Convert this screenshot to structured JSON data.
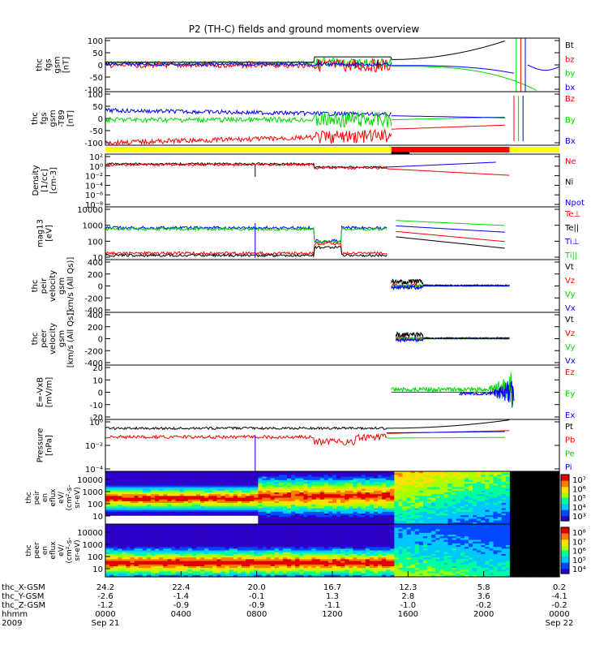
{
  "title": "P2 (TH-C) fields and ground moments overview",
  "colors": {
    "black": "#000000",
    "red": "#ff0000",
    "green": "#00d800",
    "blue": "#0000ff",
    "yellow": "#ffff00"
  },
  "chart_data": [
    {
      "type": "line",
      "id": "p1",
      "ylabel": [
        "thc",
        "fgs",
        "gsm",
        "[nT]"
      ],
      "yticks": [
        "100",
        "50",
        "0",
        "-50",
        "-100"
      ],
      "ylim": [
        -100,
        100
      ],
      "series": [
        {
          "name": "Bt",
          "color": "#000000"
        },
        {
          "name": "bz",
          "color": "#ff0000"
        },
        {
          "name": "by",
          "color": "#00d800"
        },
        {
          "name": "bx",
          "color": "#0000ff"
        }
      ]
    },
    {
      "type": "line",
      "id": "p2",
      "ylabel": [
        "thc",
        "fgs",
        "gsm",
        "-T89",
        "[nT]"
      ],
      "yticks": [
        "100",
        "50",
        "0",
        "-50",
        "-100"
      ],
      "ylim": [
        -100,
        100
      ],
      "series": [
        {
          "name": "Bz",
          "color": "#ff0000"
        },
        {
          "name": "By",
          "color": "#00d800"
        },
        {
          "name": "Bx",
          "color": "#0000ff"
        }
      ]
    },
    {
      "type": "line",
      "id": "p3",
      "ylabel": [
        "Density",
        "[1/cc]",
        "[cm-3]"
      ],
      "yticks": [
        "10²",
        "10⁰",
        "10⁻²",
        "10⁻⁴",
        "10⁻⁶",
        "10⁻⁸"
      ],
      "scale": "log",
      "series": [
        {
          "name": "Ne",
          "color": "#ff0000"
        },
        {
          "name": "Ni",
          "color": "#000000"
        },
        {
          "name": "Npot",
          "color": "#0000ff"
        }
      ]
    },
    {
      "type": "line",
      "id": "p4",
      "ylabel": [
        "mag13",
        "[eV]"
      ],
      "yticks": [
        "10000",
        "1000",
        "100",
        "10"
      ],
      "scale": "log",
      "series": [
        {
          "name": "Te⊥",
          "color": "#ff0000"
        },
        {
          "name": "Te||",
          "color": "#000000"
        },
        {
          "name": "Ti⊥",
          "color": "#0000ff"
        },
        {
          "name": "Ti||",
          "color": "#00d800"
        }
      ]
    },
    {
      "type": "line",
      "id": "p5",
      "ylabel": [
        "thc",
        "peir",
        "velocity",
        "gsm",
        "[km/s (All Qs)]"
      ],
      "yticks": [
        "400",
        "200",
        "0",
        "-200",
        "-400"
      ],
      "ylim": [
        -400,
        400
      ],
      "series": [
        {
          "name": "Vt",
          "color": "#000000"
        },
        {
          "name": "Vz",
          "color": "#ff0000"
        },
        {
          "name": "Vy",
          "color": "#00d800"
        },
        {
          "name": "Vx",
          "color": "#0000ff"
        }
      ]
    },
    {
      "type": "line",
      "id": "p6",
      "ylabel": [
        "thc",
        "peer",
        "velocity",
        "gsm",
        "[km/s (All Qs)]"
      ],
      "yticks": [
        "400",
        "200",
        "0",
        "-200",
        "-400"
      ],
      "ylim": [
        -400,
        400
      ],
      "series": [
        {
          "name": "Vt",
          "color": "#000000"
        },
        {
          "name": "Vz",
          "color": "#ff0000"
        },
        {
          "name": "Vy",
          "color": "#00d800"
        },
        {
          "name": "Vx",
          "color": "#0000ff"
        }
      ]
    },
    {
      "type": "line",
      "id": "p7",
      "ylabel": [
        "E=-VxB",
        "[mV/m]"
      ],
      "yticks": [
        "20",
        "10",
        "0",
        "-10",
        "-20"
      ],
      "ylim": [
        -20,
        20
      ],
      "series": [
        {
          "name": "Ez",
          "color": "#ff0000"
        },
        {
          "name": "Ey",
          "color": "#00d800"
        },
        {
          "name": "Ex",
          "color": "#0000ff"
        }
      ]
    },
    {
      "type": "line",
      "id": "p8",
      "ylabel": [
        "Pressure",
        "[nPa]"
      ],
      "yticks": [
        "10⁰",
        "10⁻²",
        "10⁻⁴"
      ],
      "scale": "log",
      "series": [
        {
          "name": "Pt",
          "color": "#000000"
        },
        {
          "name": "Pb",
          "color": "#ff0000"
        },
        {
          "name": "Pe",
          "color": "#00d800"
        },
        {
          "name": "Pi",
          "color": "#0000ff"
        }
      ]
    },
    {
      "type": "heatmap",
      "id": "p9",
      "ylabel": [
        "thc",
        "peir",
        "en",
        "eflux",
        "eV/",
        "(cm²-s-",
        "sr-eV)"
      ],
      "yticks": [
        "10000",
        "1000",
        "100",
        "10"
      ],
      "colorbar": [
        "10⁷",
        "10⁶",
        "10⁵",
        "10⁴",
        "10³"
      ]
    },
    {
      "type": "heatmap",
      "id": "p10",
      "ylabel": [
        "thc",
        "peer",
        "en",
        "eflux",
        "eV/",
        "(cm²-s-",
        "sr-eV)"
      ],
      "yticks": [
        "10000",
        "1000",
        "100",
        "10"
      ],
      "colorbar": [
        "10⁸",
        "10⁷",
        "10⁶",
        "10⁵",
        "10⁴"
      ]
    }
  ],
  "xaxis": {
    "rows": [
      {
        "label": "thc_X-GSM",
        "values": [
          "24.2",
          "22.4",
          "20.0",
          "16.7",
          "12.3",
          "5.8",
          "0.2"
        ]
      },
      {
        "label": "thc_Y-GSM",
        "values": [
          "-2.6",
          "-1.4",
          "-0.1",
          "1.3",
          "2.8",
          "3.6",
          "-4.1"
        ]
      },
      {
        "label": "thc_Z-GSM",
        "values": [
          "-1.2",
          "-0.9",
          "-0.9",
          "-1.1",
          "-1.0",
          "-0.2",
          "-0.2"
        ]
      },
      {
        "label": "hhmm",
        "values": [
          "0000",
          "0400",
          "0800",
          "1200",
          "1600",
          "2000",
          "0000"
        ]
      },
      {
        "label": "2009",
        "values": [
          "Sep 21",
          "",
          "",
          "",
          "",
          "",
          "Sep 22"
        ]
      }
    ]
  }
}
